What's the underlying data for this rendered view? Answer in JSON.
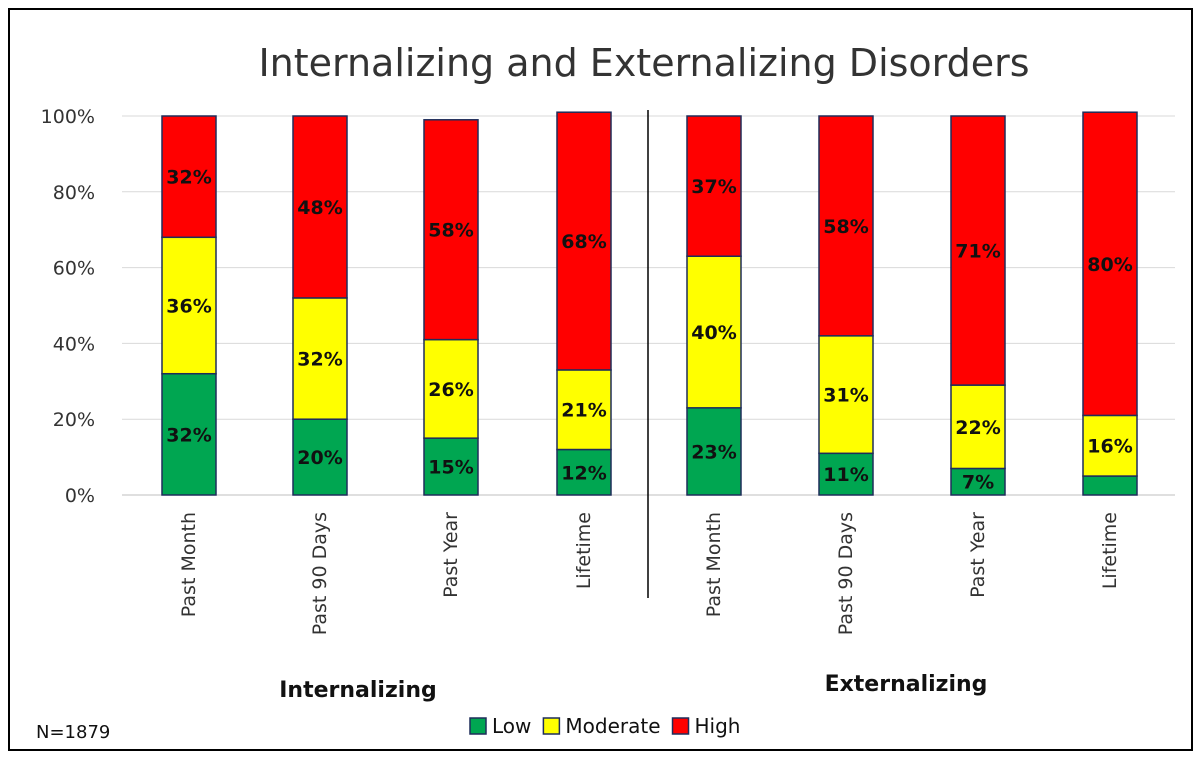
{
  "chart_data": {
    "type": "bar",
    "stacked": true,
    "title": "Internalizing and Externalizing Disorders",
    "categories": [
      "Past Month",
      "Past 90 Days",
      "Past Year",
      "Lifetime",
      "Past Month",
      "Past 90 Days",
      "Past Year",
      "Lifetime"
    ],
    "groups": [
      {
        "label": "Internalizing",
        "category_indices": [
          0,
          1,
          2,
          3
        ]
      },
      {
        "label": "Externalizing",
        "category_indices": [
          4,
          5,
          6,
          7
        ]
      }
    ],
    "series": [
      {
        "name": "Low",
        "color": "#00a651",
        "values": [
          32,
          20,
          15,
          12,
          23,
          11,
          7,
          5
        ],
        "labels": [
          "32%",
          "20%",
          "15%",
          "12%",
          "23%",
          "11%",
          "7%",
          ""
        ]
      },
      {
        "name": "Moderate",
        "color": "#ffff00",
        "values": [
          36,
          32,
          26,
          21,
          40,
          31,
          22,
          16
        ],
        "labels": [
          "36%",
          "32%",
          "26%",
          "21%",
          "40%",
          "31%",
          "22%",
          "16%"
        ]
      },
      {
        "name": "High",
        "color": "#ff0000",
        "values": [
          32,
          48,
          58,
          68,
          37,
          58,
          71,
          80
        ],
        "labels": [
          "32%",
          "48%",
          "58%",
          "68%",
          "37%",
          "58%",
          "71%",
          "80%"
        ]
      }
    ],
    "ylim": [
      0,
      100
    ],
    "yticks": [
      "0%",
      "20%",
      "40%",
      "60%",
      "80%",
      "100%"
    ],
    "grid": true,
    "legend_position": "bottom",
    "note": "N=1879",
    "bar_outline_color": "#1f2d5a"
  }
}
